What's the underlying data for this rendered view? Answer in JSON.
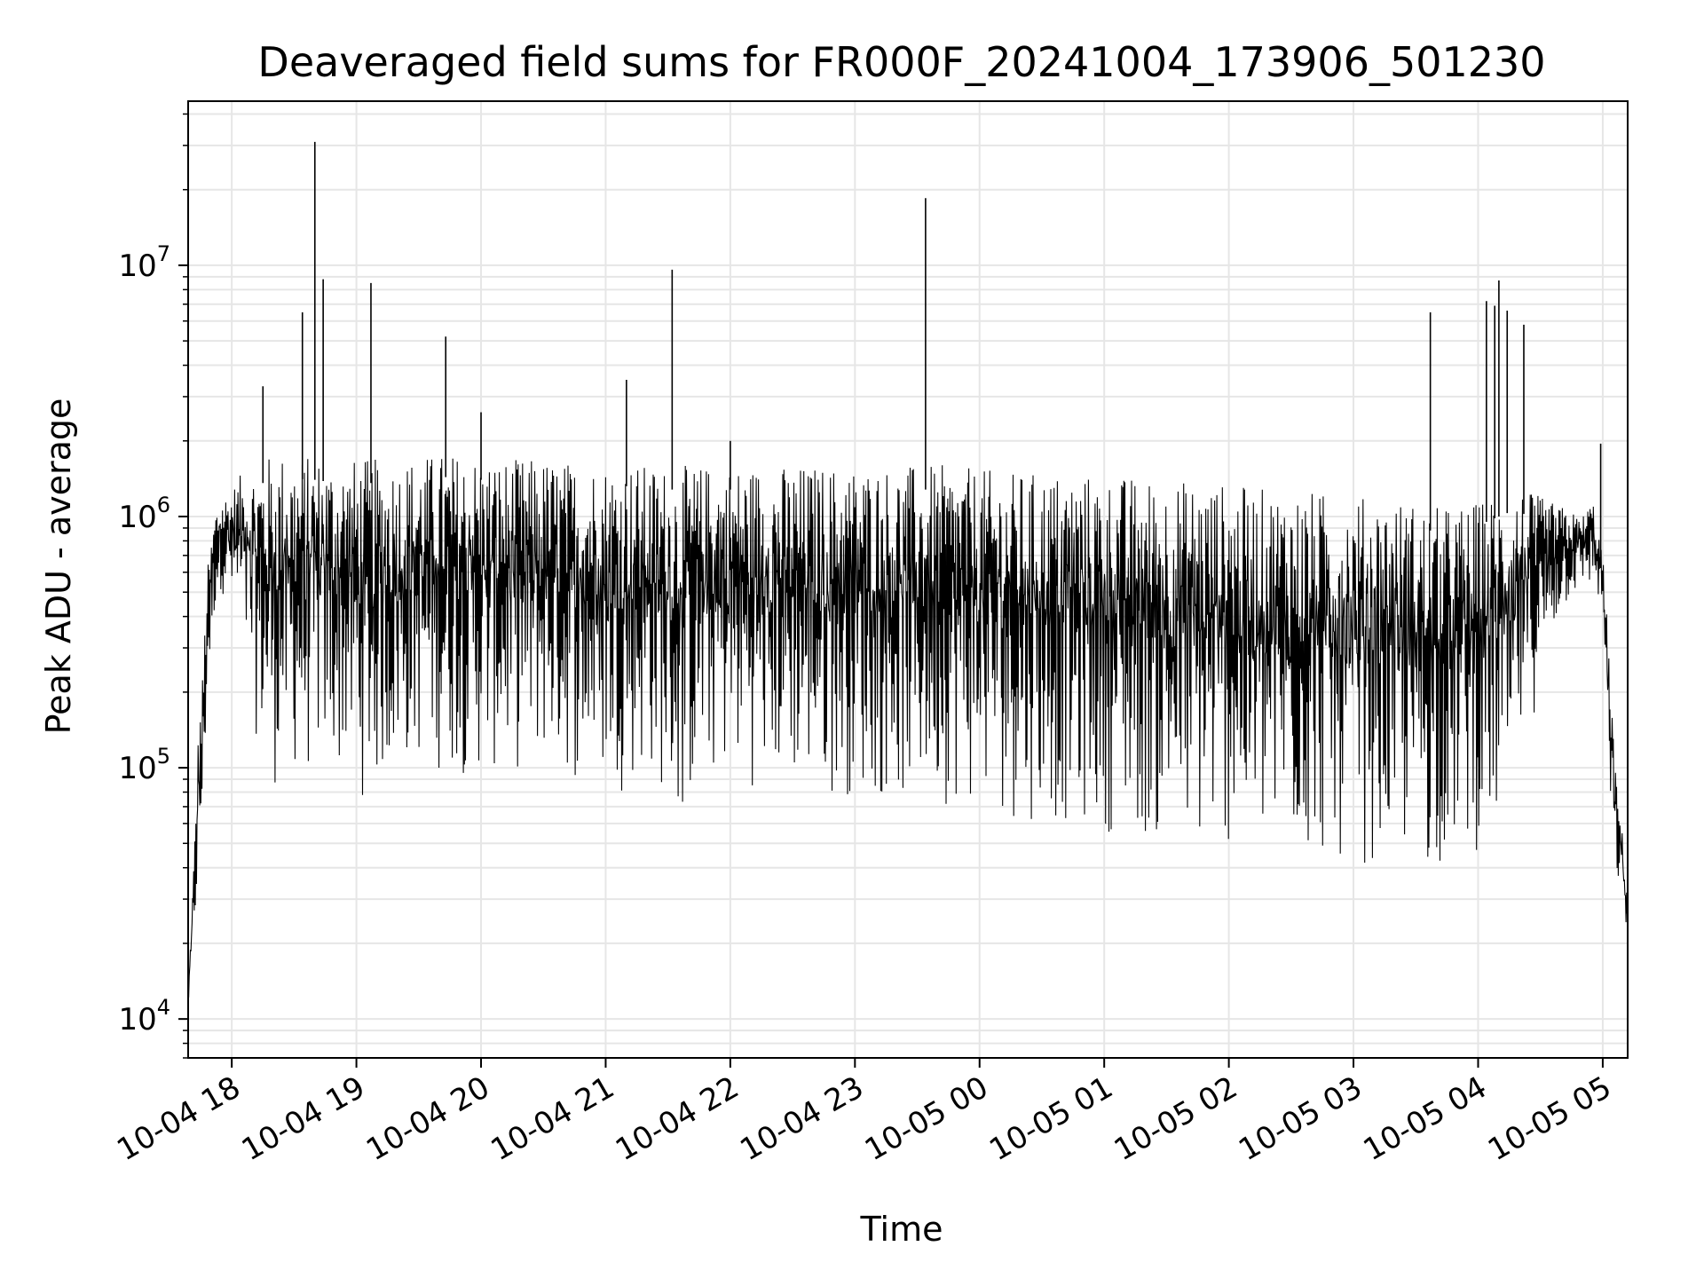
{
  "chart_data": {
    "type": "line",
    "title": "Deaveraged field sums for FR000F_20241004_173906_501230",
    "xlabel": "Time",
    "ylabel": "Peak ADU - average",
    "yscale": "log",
    "grid": true,
    "line_color": "#000000",
    "grid_color": "#e6e6e6",
    "xlim": [
      "2024-10-04 17:39",
      "2024-10-05 05:12"
    ],
    "ylim": [
      7000,
      45000000
    ],
    "x_ticks": [
      {
        "label": "10-04 18",
        "time": "2024-10-04 18:00"
      },
      {
        "label": "10-04 19",
        "time": "2024-10-04 19:00"
      },
      {
        "label": "10-04 20",
        "time": "2024-10-04 20:00"
      },
      {
        "label": "10-04 21",
        "time": "2024-10-04 21:00"
      },
      {
        "label": "10-04 22",
        "time": "2024-10-04 22:00"
      },
      {
        "label": "10-04 23",
        "time": "2024-10-04 23:00"
      },
      {
        "label": "10-05 00",
        "time": "2024-10-05 00:00"
      },
      {
        "label": "10-05 01",
        "time": "2024-10-05 01:00"
      },
      {
        "label": "10-05 02",
        "time": "2024-10-05 02:00"
      },
      {
        "label": "10-05 03",
        "time": "2024-10-05 03:00"
      },
      {
        "label": "10-05 04",
        "time": "2024-10-05 04:00"
      },
      {
        "label": "10-05 05",
        "time": "2024-10-05 05:00"
      }
    ],
    "y_ticks": [
      {
        "base": "10",
        "exp": "4",
        "value": 10000
      },
      {
        "base": "10",
        "exp": "5",
        "value": 100000
      },
      {
        "base": "10",
        "exp": "6",
        "value": 1000000
      },
      {
        "base": "10",
        "exp": "7",
        "value": 10000000
      }
    ],
    "series": [
      {
        "x": [
          "2024-10-04 17:39",
          "2024-10-04 17:42",
          "2024-10-04 17:44",
          "2024-10-04 17:46",
          "2024-10-04 17:48",
          "2024-10-04 17:50",
          "2024-10-04 17:52",
          "2024-10-04 17:55",
          "2024-10-04 18:00",
          "2024-10-04 18:05",
          "2024-10-04 18:10",
          "2024-10-04 18:15",
          "2024-10-04 18:20",
          "2024-10-04 18:30",
          "2024-10-04 18:35",
          "2024-10-04 18:40",
          "2024-10-04 18:50",
          "2024-10-04 19:00",
          "2024-10-04 19:05",
          "2024-10-04 19:20",
          "2024-10-04 19:30",
          "2024-10-04 19:45",
          "2024-10-04 20:00",
          "2024-10-04 20:15",
          "2024-10-04 20:30",
          "2024-10-04 20:45",
          "2024-10-04 21:00",
          "2024-10-04 21:10",
          "2024-10-04 21:20",
          "2024-10-04 21:30",
          "2024-10-04 21:35",
          "2024-10-04 21:45",
          "2024-10-04 22:00",
          "2024-10-04 22:15",
          "2024-10-04 22:30",
          "2024-10-04 22:45",
          "2024-10-04 23:00",
          "2024-10-04 23:15",
          "2024-10-04 23:30",
          "2024-10-04 23:35",
          "2024-10-04 23:45",
          "2024-10-05 00:00",
          "2024-10-05 00:15",
          "2024-10-05 00:30",
          "2024-10-05 00:45",
          "2024-10-05 01:00",
          "2024-10-05 01:15",
          "2024-10-05 01:30",
          "2024-10-05 01:45",
          "2024-10-05 02:00",
          "2024-10-05 02:15",
          "2024-10-05 02:30",
          "2024-10-05 02:45",
          "2024-10-05 03:00",
          "2024-10-05 03:15",
          "2024-10-05 03:30",
          "2024-10-05 03:35",
          "2024-10-05 03:45",
          "2024-10-05 04:00",
          "2024-10-05 04:05",
          "2024-10-05 04:10",
          "2024-10-05 04:15",
          "2024-10-05 04:20",
          "2024-10-05 04:30",
          "2024-10-05 04:40",
          "2024-10-05 04:50",
          "2024-10-05 04:55",
          "2024-10-05 05:00",
          "2024-10-05 05:03",
          "2024-10-05 05:06",
          "2024-10-05 05:09",
          "2024-10-05 05:12"
        ],
        "envelope_low": [
          11000,
          20000,
          30000,
          50000,
          150000,
          250000,
          400000,
          500000,
          400000,
          300000,
          150000,
          100000,
          80000,
          90000,
          80000,
          100000,
          90000,
          80000,
          70000,
          90000,
          100000,
          90000,
          90000,
          90000,
          100000,
          85000,
          80000,
          80000,
          90000,
          70000,
          50000,
          80000,
          90000,
          80000,
          80000,
          75000,
          75000,
          70000,
          65000,
          70000,
          70000,
          65000,
          60000,
          60000,
          55000,
          55000,
          50000,
          45000,
          42000,
          45000,
          40000,
          40000,
          40000,
          40000,
          40000,
          38000,
          35000,
          40000,
          45000,
          45000,
          50000,
          55000,
          100000,
          200000,
          400000,
          500000,
          500000,
          400000,
          70000,
          35000,
          30000,
          20000
        ],
        "envelope_high": [
          12000,
          50000,
          150000,
          240000,
          600000,
          800000,
          1100000,
          1200000,
          1300000,
          1500000,
          1600000,
          1700000,
          1800000,
          1800000,
          1750000,
          1750000,
          1700000,
          1700000,
          1700000,
          1700000,
          1750000,
          1800000,
          1750000,
          1700000,
          1700000,
          1650000,
          1650000,
          1650000,
          1600000,
          1600000,
          1600000,
          1600000,
          1600000,
          1600000,
          1600000,
          1600000,
          1600000,
          1600000,
          1600000,
          1600000,
          1600000,
          1550000,
          1500000,
          1500000,
          1500000,
          1450000,
          1450000,
          1400000,
          1400000,
          1350000,
          1300000,
          1300000,
          1250000,
          1200000,
          1200000,
          1150000,
          1100000,
          1100000,
          1150000,
          1200000,
          1250000,
          1300000,
          1300000,
          1200000,
          1100000,
          1000000,
          1200000,
          700000,
          300000,
          100000,
          60000,
          30000
        ],
        "spikes": [
          {
            "time": "2024-10-04 18:15",
            "value": 3300000
          },
          {
            "time": "2024-10-04 18:34",
            "value": 6500000
          },
          {
            "time": "2024-10-04 18:40",
            "value": 31000000
          },
          {
            "time": "2024-10-04 18:44",
            "value": 8800000
          },
          {
            "time": "2024-10-04 19:07",
            "value": 8500000
          },
          {
            "time": "2024-10-04 19:43",
            "value": 5200000
          },
          {
            "time": "2024-10-04 20:00",
            "value": 2600000
          },
          {
            "time": "2024-10-04 21:10",
            "value": 3500000
          },
          {
            "time": "2024-10-04 21:32",
            "value": 9600000
          },
          {
            "time": "2024-10-04 22:00",
            "value": 2000000
          },
          {
            "time": "2024-10-04 23:34",
            "value": 18500000
          },
          {
            "time": "2024-10-05 03:37",
            "value": 6500000
          },
          {
            "time": "2024-10-05 04:04",
            "value": 7200000
          },
          {
            "time": "2024-10-05 04:08",
            "value": 6900000
          },
          {
            "time": "2024-10-05 04:10",
            "value": 8700000
          },
          {
            "time": "2024-10-05 04:14",
            "value": 6600000
          },
          {
            "time": "2024-10-05 04:22",
            "value": 5800000
          },
          {
            "time": "2024-10-05 04:59",
            "value": 1950000
          }
        ]
      }
    ]
  }
}
